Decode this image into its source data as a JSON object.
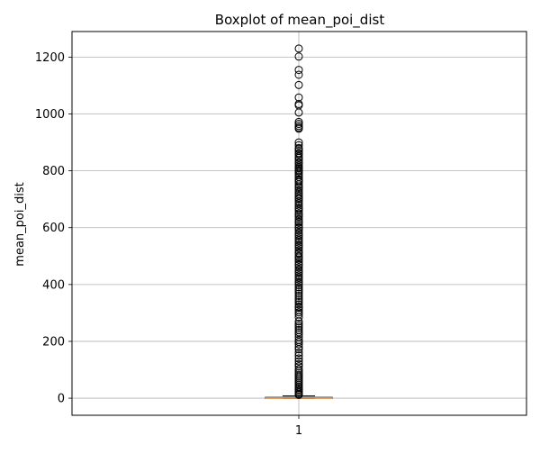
{
  "chart_data": {
    "type": "box",
    "title": "Boxplot of mean_poi_dist",
    "xlabel": "",
    "ylabel": "mean_poi_dist",
    "categories": [
      "1"
    ],
    "ylim": [
      -60,
      1290
    ],
    "yticks": [
      0,
      200,
      400,
      600,
      800,
      1000,
      1200
    ],
    "grid": true,
    "series": [
      {
        "category": "1",
        "box": {
          "whisker_low": 0,
          "q1": 0.5,
          "median": 1,
          "q3": 3,
          "whisker_high": 8
        },
        "outliers": [
          1230,
          1202,
          1155,
          1138,
          1102,
          1058,
          1035,
          1030,
          1005,
          972,
          965,
          958,
          952,
          948,
          900,
          890,
          880,
          876,
          870,
          862,
          858,
          850,
          845,
          838,
          830,
          825,
          818,
          812,
          808,
          802,
          798,
          792,
          785,
          778,
          770,
          765,
          760,
          752,
          745,
          740,
          732,
          725,
          718,
          712,
          705,
          700,
          692,
          685,
          678,
          670,
          665,
          658,
          650,
          645,
          638,
          630,
          622,
          618,
          610,
          602,
          598,
          590,
          582,
          575,
          570,
          562,
          555,
          548,
          540,
          535,
          528,
          520,
          512,
          508,
          500,
          495,
          488,
          480,
          472,
          468,
          460,
          452,
          445,
          440,
          432,
          425,
          418,
          410,
          405,
          398,
          390,
          382,
          375,
          368,
          360,
          352,
          345,
          338,
          330,
          322,
          318,
          310,
          302,
          295,
          285,
          270,
          262,
          255,
          248,
          240,
          232,
          225,
          215,
          205,
          198,
          190,
          180,
          172,
          160,
          150,
          140,
          130,
          120,
          112,
          102,
          95,
          88,
          82,
          76,
          70,
          64,
          58,
          52,
          46,
          40,
          35,
          30,
          25,
          20,
          15,
          12
        ]
      }
    ],
    "colors": {
      "median": "#ff7f0e",
      "box": "#000000",
      "grid": "#b0b0b0",
      "outlier_edge": "#000000"
    }
  }
}
